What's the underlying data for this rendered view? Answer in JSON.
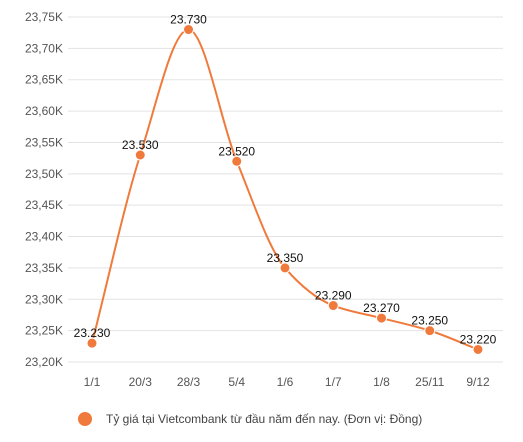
{
  "chart_data": {
    "type": "line",
    "categories": [
      "1/1",
      "20/3",
      "28/3",
      "5/4",
      "1/6",
      "1/7",
      "1/8",
      "25/11",
      "9/12"
    ],
    "series": [
      {
        "name": "Tỷ giá tại Vietcombank từ đầu năm đến nay. (Đơn vị: Đồng)",
        "values": [
          23230,
          23530,
          23730,
          23520,
          23350,
          23290,
          23270,
          23250,
          23220
        ],
        "data_labels": [
          "23.230",
          "23.530",
          "23.730",
          "23.520",
          "23.350",
          "23.290",
          "23.270",
          "23.250",
          "23.220"
        ]
      }
    ],
    "ylim": [
      23200,
      23750
    ],
    "yticks": [
      23200,
      23250,
      23300,
      23350,
      23400,
      23450,
      23500,
      23550,
      23600,
      23650,
      23700,
      23750
    ],
    "ytick_labels": [
      "23,20K",
      "23,25K",
      "23,30K",
      "23,35K",
      "23,40K",
      "23,45K",
      "23,50K",
      "23,55K",
      "23,60K",
      "23,65K",
      "23,70K",
      "23,75K"
    ],
    "grid": true,
    "legend_position": "bottom",
    "color": "#f07a3c",
    "smooth": true
  }
}
